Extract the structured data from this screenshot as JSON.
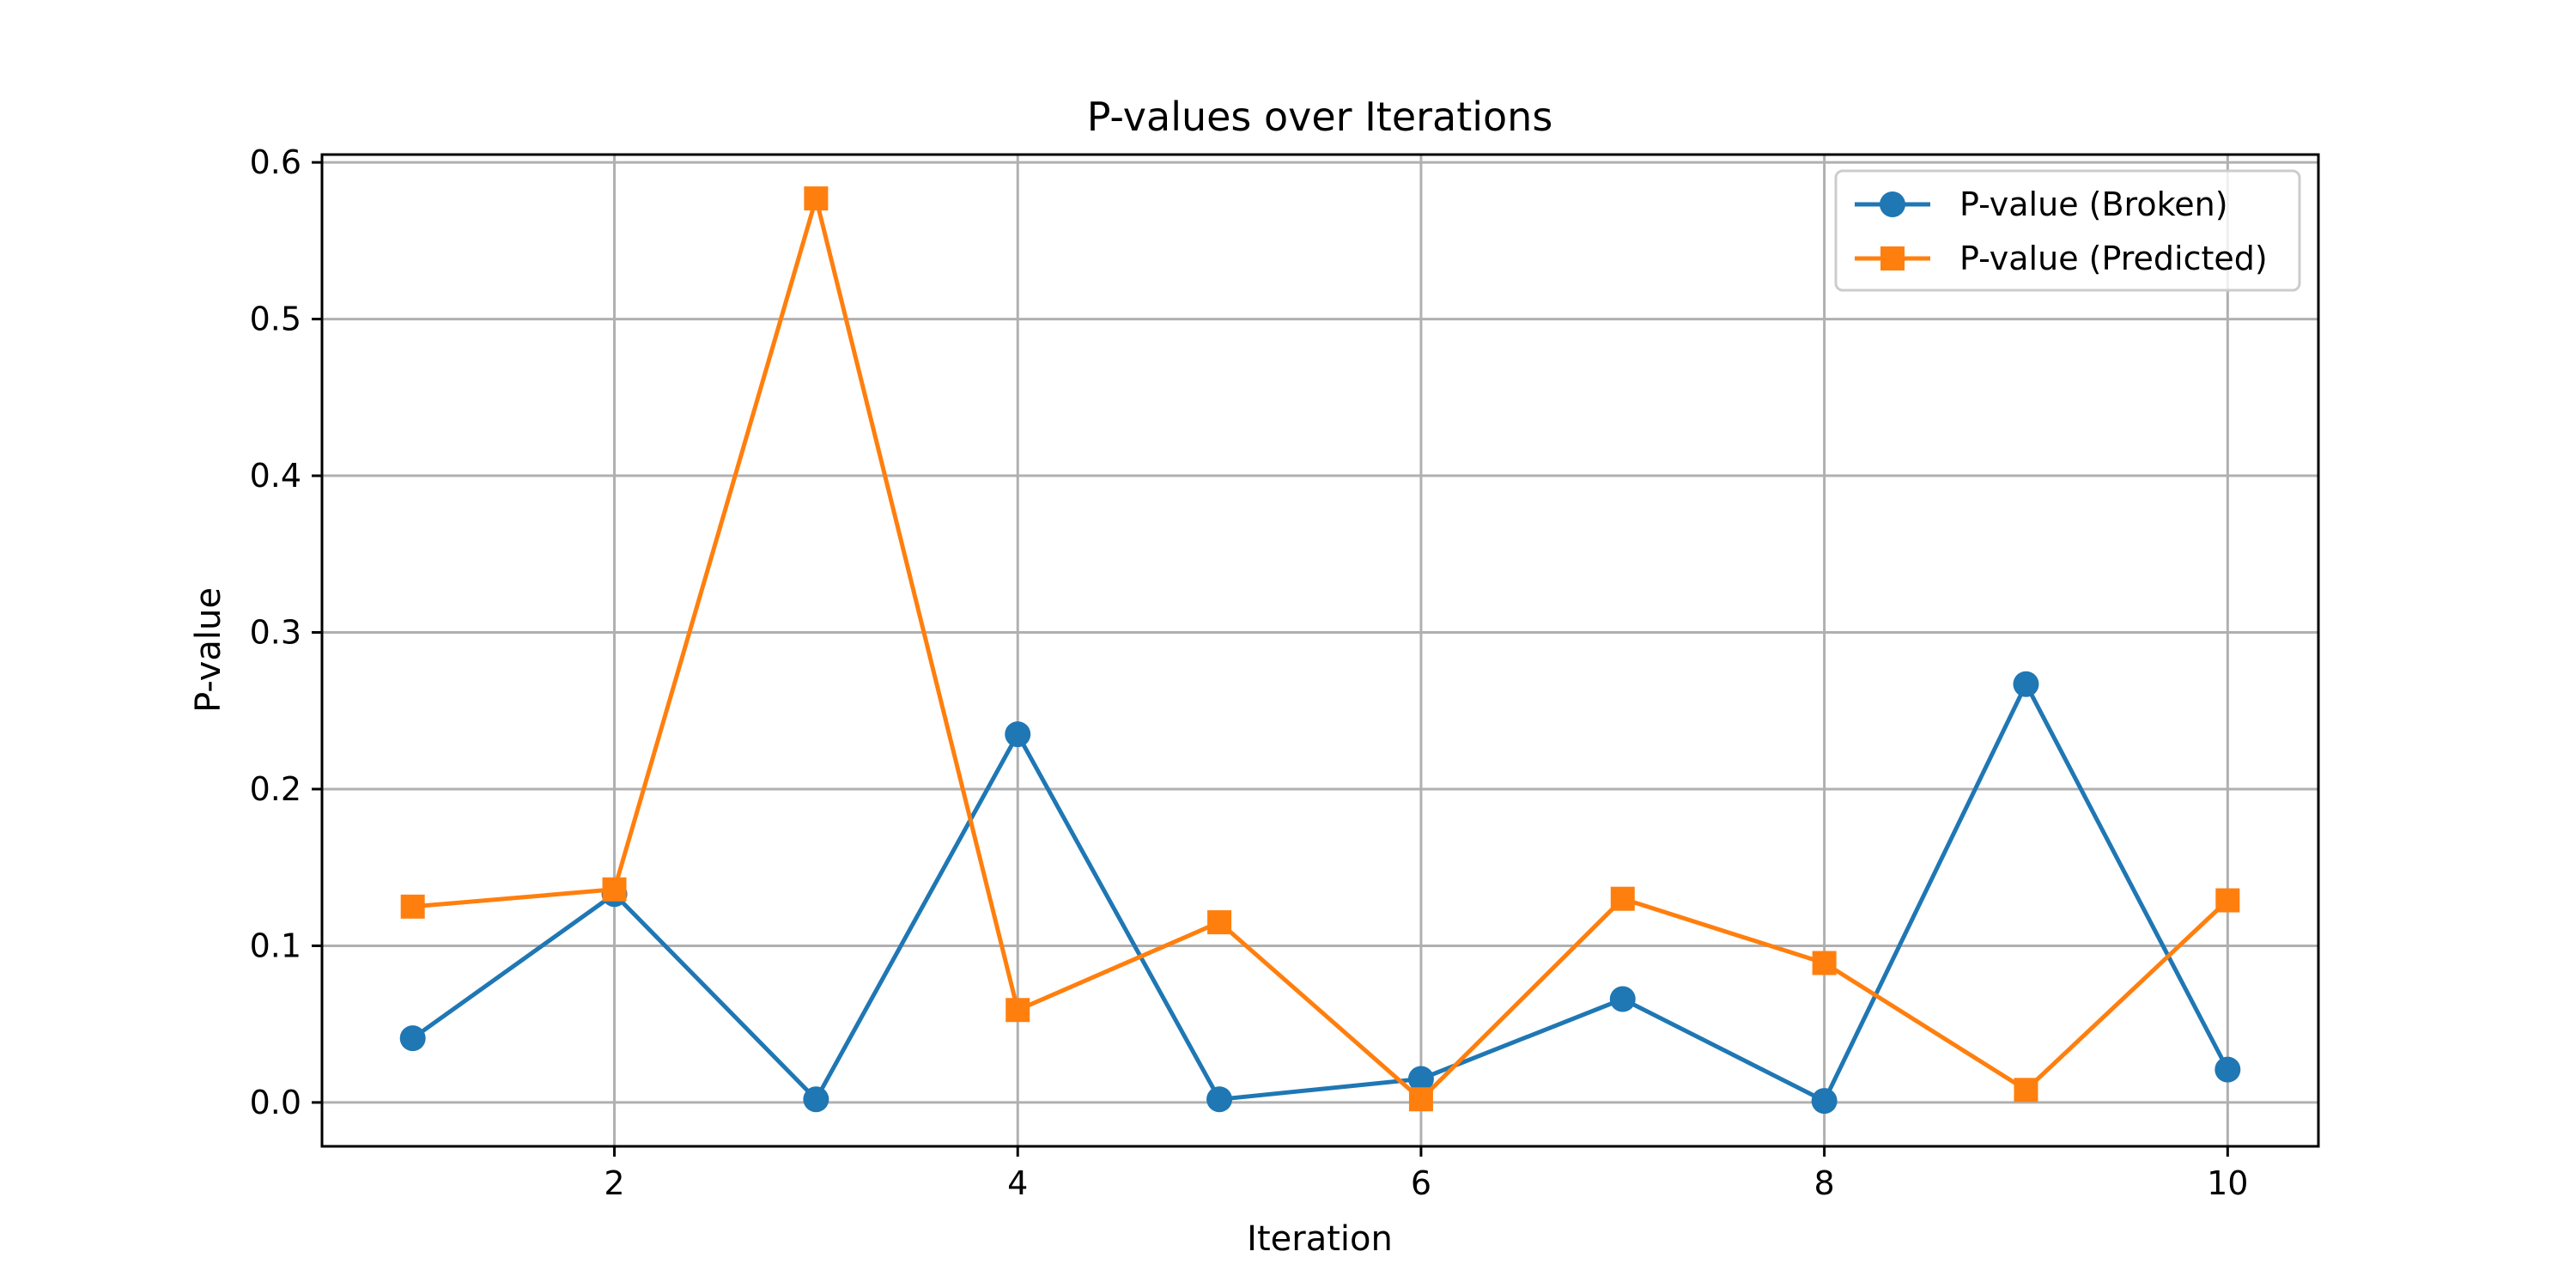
{
  "chart_data": {
    "type": "line",
    "title": "P-values over Iterations",
    "xlabel": "Iteration",
    "ylabel": "P-value",
    "xlim": [
      0.55,
      10.45
    ],
    "ylim": [
      -0.028,
      0.605
    ],
    "xticks": [
      2,
      4,
      6,
      8,
      10
    ],
    "yticks": [
      0.0,
      0.1,
      0.2,
      0.3,
      0.4,
      0.5,
      0.6
    ],
    "ytick_labels": [
      "0.0",
      "0.1",
      "0.2",
      "0.3",
      "0.4",
      "0.5",
      "0.6"
    ],
    "grid": true,
    "legend_position": "top-right",
    "x": [
      1,
      2,
      3,
      4,
      5,
      6,
      7,
      8,
      9,
      10
    ],
    "series": [
      {
        "name": "P-value (Broken)",
        "color": "#1f77b4",
        "marker": "circle",
        "values": [
          0.041,
          0.133,
          0.002,
          0.235,
          0.002,
          0.015,
          0.066,
          0.001,
          0.267,
          0.021
        ]
      },
      {
        "name": "P-value (Predicted)",
        "color": "#ff7f0e",
        "marker": "square",
        "values": [
          0.125,
          0.136,
          0.577,
          0.059,
          0.115,
          0.002,
          0.13,
          0.089,
          0.008,
          0.129
        ]
      }
    ]
  }
}
